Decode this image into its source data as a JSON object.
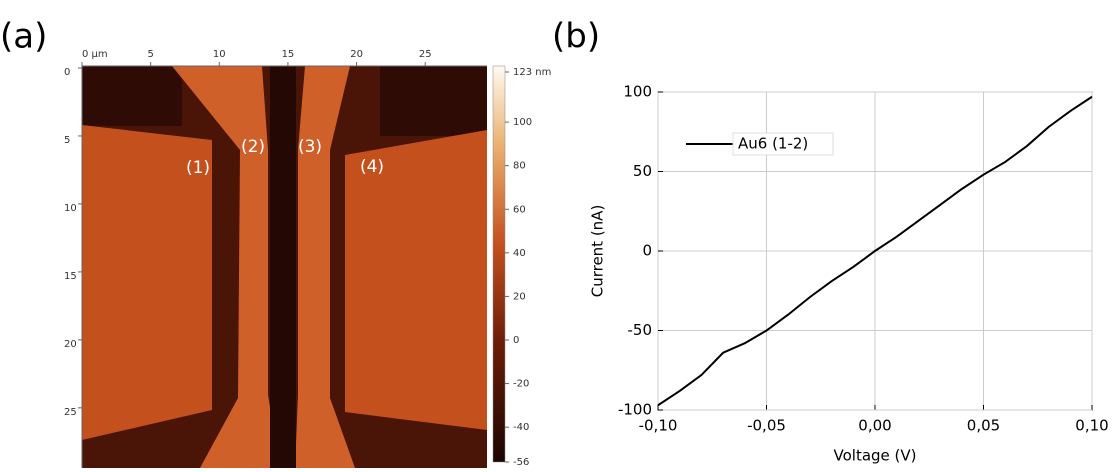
{
  "chart_data": [
    {
      "type": "image",
      "panel_label": "(a)",
      "xlim": [
        0,
        29.5
      ],
      "xticks": [
        {
          "value": 0,
          "label": "0 µm"
        },
        5,
        10,
        15,
        20,
        25
      ],
      "ylim": [
        0,
        29.5
      ],
      "yticks": [
        0,
        5,
        10,
        15,
        20,
        25
      ],
      "clim": [
        -56,
        123
      ],
      "cticks": [
        {
          "value": 123,
          "label": "123 nm"
        },
        100,
        80,
        60,
        40,
        20,
        0,
        -20,
        -40,
        -56
      ],
      "annotations": [
        "(1)",
        "(2)",
        "(3)",
        "(4)"
      ]
    },
    {
      "type": "line",
      "panel_label": "(b)",
      "x_label": "Voltage (V)",
      "y_label": "Current (nA)",
      "xlim": [
        -0.1,
        0.1
      ],
      "xticks": [
        {
          "value": -0.1,
          "label": "-0,10"
        },
        {
          "value": -0.05,
          "label": "-0,05"
        },
        {
          "value": 0,
          "label": "0,00"
        },
        {
          "value": 0.05,
          "label": "0,05"
        },
        {
          "value": 0.1,
          "label": "0,10"
        }
      ],
      "ylim": [
        -100,
        100
      ],
      "yticks": [
        100,
        50,
        0,
        -50,
        -100
      ],
      "grid": true,
      "legend": "upper left",
      "x": [
        -0.1,
        -0.09,
        -0.08,
        -0.07,
        -0.06,
        -0.05,
        -0.04,
        -0.03,
        -0.02,
        -0.01,
        0,
        0.01,
        0.02,
        0.03,
        0.04,
        0.05,
        0.06,
        0.07,
        0.08,
        0.09,
        0.1
      ],
      "series": [
        {
          "name": "Au6 (1-2)",
          "color": "#000000",
          "values": [
            -97,
            -88,
            -78,
            -64,
            -58,
            -50,
            -40,
            -29,
            -19,
            -10,
            0,
            9,
            19,
            29,
            39,
            48,
            56,
            66,
            78,
            88,
            97
          ]
        }
      ]
    }
  ]
}
